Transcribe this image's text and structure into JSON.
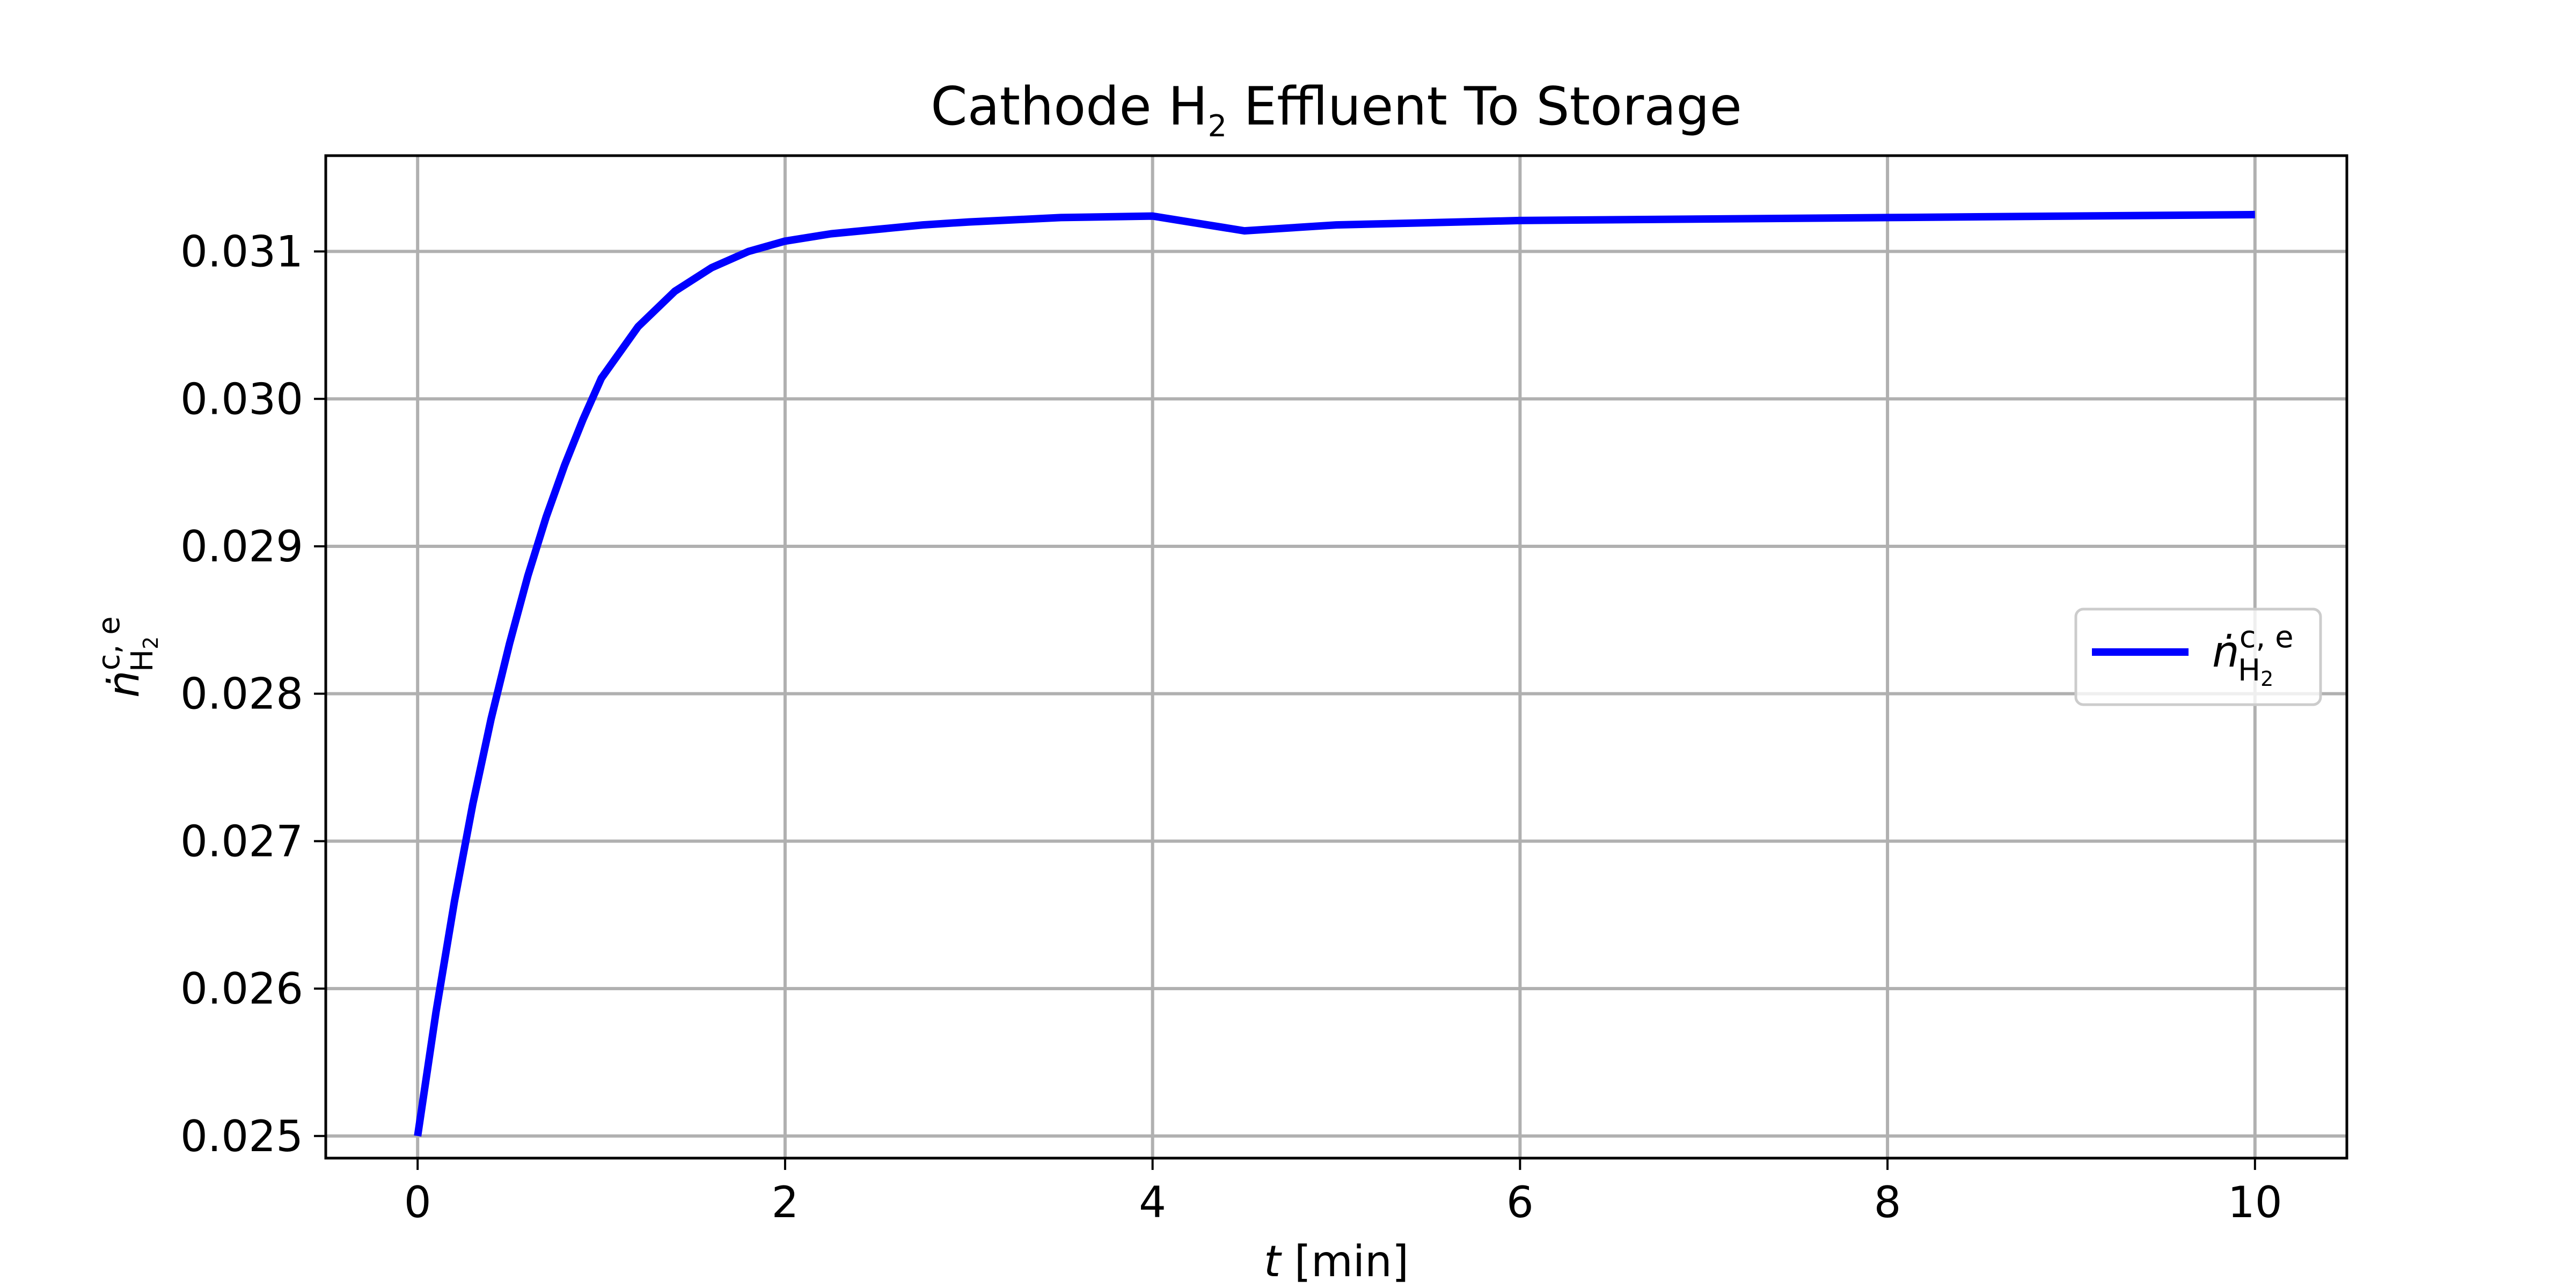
{
  "chart_data": {
    "type": "line",
    "title": {
      "main": "Cathode H",
      "sub": "2",
      "rest": " Effluent To Storage"
    },
    "xlabel": {
      "var": "t",
      "unit": " [min]"
    },
    "ylabel": {
      "base": "ṅ",
      "sup": "c, e",
      "sub": "H",
      "subsub": "2"
    },
    "xlim": [
      -0.5,
      10.5
    ],
    "ylim": [
      0.02485,
      0.03165
    ],
    "xticks": [
      0,
      2,
      4,
      6,
      8,
      10
    ],
    "xtick_labels": [
      "0",
      "2",
      "4",
      "6",
      "8",
      "10"
    ],
    "yticks": [
      0.025,
      0.026,
      0.027,
      0.028,
      0.029,
      0.03,
      0.031
    ],
    "ytick_labels": [
      "0.025",
      "0.026",
      "0.027",
      "0.028",
      "0.029",
      "0.030",
      "0.031"
    ],
    "grid": true,
    "legend_position": "center-right",
    "series": [
      {
        "name": {
          "base": "ṅ",
          "sup": "c, e",
          "sub": "H",
          "subsub": "2"
        },
        "color": "#0000ff",
        "x": [
          0,
          0.1,
          0.2,
          0.3,
          0.4,
          0.5,
          0.6,
          0.7,
          0.8,
          0.9,
          1.0,
          1.2,
          1.4,
          1.6,
          1.8,
          2.0,
          2.25,
          2.5,
          2.75,
          3.0,
          3.5,
          4.0,
          4.5,
          5.0,
          6.0,
          7.0,
          8.0,
          9.0,
          10.0
        ],
        "y": [
          0.025,
          0.02584,
          0.02659,
          0.02725,
          0.02783,
          0.02834,
          0.0288,
          0.0292,
          0.02955,
          0.02986,
          0.03014,
          0.03059,
          0.03094,
          0.03121,
          0.03142,
          0.03158,
          0.03123,
          0.03112,
          0.03105,
          0.031,
          0.03107,
          0.0311,
          0.03114,
          0.03118,
          0.03121,
          0.03122,
          0.03123,
          0.03124,
          0.03125
        ]
      }
    ]
  }
}
